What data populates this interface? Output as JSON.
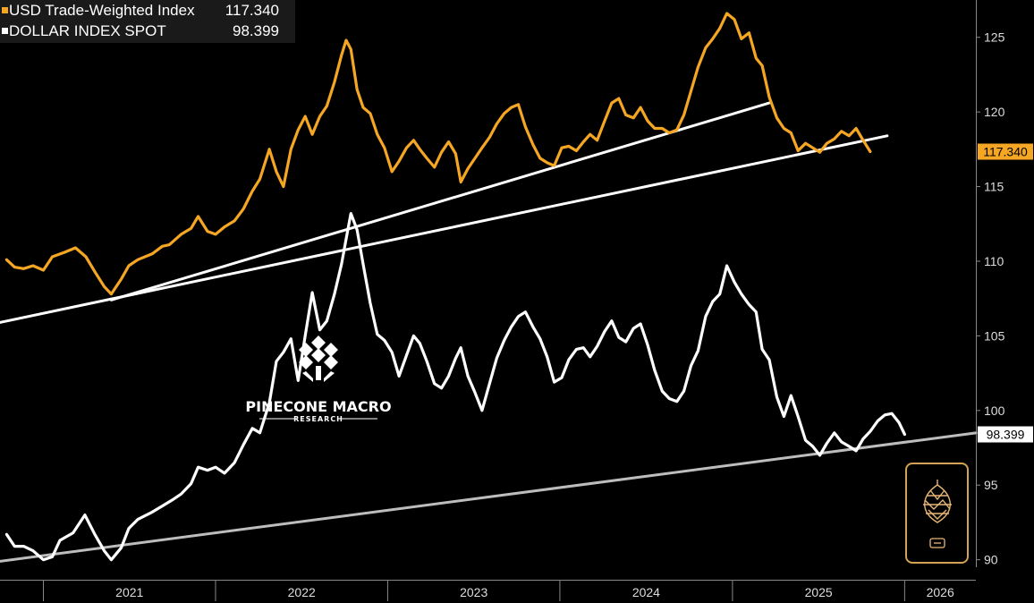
{
  "legend": {
    "series1": {
      "name": "USD Trade-Weighted Index",
      "value": "117.340"
    },
    "series2": {
      "name": "DOLLAR INDEX SPOT",
      "value": "98.399"
    }
  },
  "watermark": {
    "line1": "PINECONE MACRO",
    "line2": "RESEARCH",
    "logo": "pinecone-logo-icon"
  },
  "colors": {
    "background": "#000000",
    "trade_weighted": "#f5a623",
    "dxy": "#ffffff",
    "trendline": "#ffffff",
    "support_line": "#bdbdbd"
  },
  "chart_data": {
    "type": "line",
    "x_axis": {
      "labels": [
        "2021",
        "2022",
        "2023",
        "2024",
        "2025",
        "2026"
      ],
      "range": [
        "2020-10",
        "2026-06"
      ]
    },
    "y_axis": {
      "position": "right",
      "ticks": [
        90,
        95,
        100,
        105,
        110,
        115,
        120,
        125
      ],
      "range": [
        89.5,
        127.5
      ]
    },
    "series": [
      {
        "name": "USD Trade-Weighted Index",
        "color": "#f5a623",
        "last_value": 117.34,
        "points": [
          [
            "2020-10-15",
            110.1
          ],
          [
            "2020-11-01",
            109.6
          ],
          [
            "2020-11-20",
            109.5
          ],
          [
            "2020-12-10",
            109.7
          ],
          [
            "2021-01-01",
            109.4
          ],
          [
            "2021-01-20",
            110.3
          ],
          [
            "2021-02-15",
            110.6
          ],
          [
            "2021-03-10",
            110.9
          ],
          [
            "2021-04-01",
            110.3
          ],
          [
            "2021-04-20",
            109.3
          ],
          [
            "2021-05-10",
            108.3
          ],
          [
            "2021-05-25",
            107.8
          ],
          [
            "2021-06-15",
            108.8
          ],
          [
            "2021-07-01",
            109.7
          ],
          [
            "2021-07-20",
            110.1
          ],
          [
            "2021-08-20",
            110.5
          ],
          [
            "2021-09-10",
            111.0
          ],
          [
            "2021-09-25",
            111.1
          ],
          [
            "2021-10-20",
            111.8
          ],
          [
            "2021-11-10",
            112.2
          ],
          [
            "2021-11-25",
            113.0
          ],
          [
            "2021-12-15",
            112.0
          ],
          [
            "2022-01-01",
            111.8
          ],
          [
            "2022-01-20",
            112.3
          ],
          [
            "2022-02-10",
            112.7
          ],
          [
            "2022-03-01",
            113.5
          ],
          [
            "2022-03-20",
            114.7
          ],
          [
            "2022-04-05",
            115.5
          ],
          [
            "2022-04-25",
            117.5
          ],
          [
            "2022-05-10",
            116.0
          ],
          [
            "2022-05-25",
            115.0
          ],
          [
            "2022-06-10",
            117.5
          ],
          [
            "2022-06-25",
            118.8
          ],
          [
            "2022-07-10",
            119.7
          ],
          [
            "2022-07-25",
            118.5
          ],
          [
            "2022-08-10",
            119.7
          ],
          [
            "2022-08-25",
            120.4
          ],
          [
            "2022-09-10",
            122.0
          ],
          [
            "2022-09-25",
            123.8
          ],
          [
            "2022-10-05",
            124.8
          ],
          [
            "2022-10-15",
            124.2
          ],
          [
            "2022-10-28",
            121.5
          ],
          [
            "2022-11-10",
            120.3
          ],
          [
            "2022-11-25",
            119.9
          ],
          [
            "2022-12-10",
            118.5
          ],
          [
            "2022-12-25",
            117.6
          ],
          [
            "2023-01-10",
            116.0
          ],
          [
            "2023-01-25",
            116.7
          ],
          [
            "2023-02-10",
            117.6
          ],
          [
            "2023-02-25",
            118.1
          ],
          [
            "2023-03-10",
            117.5
          ],
          [
            "2023-03-25",
            116.9
          ],
          [
            "2023-04-10",
            116.3
          ],
          [
            "2023-04-25",
            117.3
          ],
          [
            "2023-05-10",
            118.0
          ],
          [
            "2023-05-25",
            117.2
          ],
          [
            "2023-06-05",
            115.3
          ],
          [
            "2023-06-20",
            116.2
          ],
          [
            "2023-07-05",
            116.9
          ],
          [
            "2023-07-20",
            117.6
          ],
          [
            "2023-08-05",
            118.3
          ],
          [
            "2023-08-20",
            119.2
          ],
          [
            "2023-09-05",
            119.9
          ],
          [
            "2023-09-20",
            120.3
          ],
          [
            "2023-10-05",
            120.5
          ],
          [
            "2023-10-20",
            119.0
          ],
          [
            "2023-11-05",
            117.8
          ],
          [
            "2023-11-20",
            116.9
          ],
          [
            "2023-12-05",
            116.6
          ],
          [
            "2023-12-20",
            116.4
          ],
          [
            "2024-01-05",
            117.6
          ],
          [
            "2024-01-20",
            117.7
          ],
          [
            "2024-02-05",
            117.4
          ],
          [
            "2024-02-20",
            118.0
          ],
          [
            "2024-03-05",
            118.5
          ],
          [
            "2024-03-20",
            118.1
          ],
          [
            "2024-04-05",
            119.4
          ],
          [
            "2024-04-20",
            120.6
          ],
          [
            "2024-05-05",
            120.9
          ],
          [
            "2024-05-20",
            119.8
          ],
          [
            "2024-06-05",
            119.6
          ],
          [
            "2024-06-20",
            120.3
          ],
          [
            "2024-07-05",
            119.4
          ],
          [
            "2024-07-20",
            118.9
          ],
          [
            "2024-08-05",
            118.9
          ],
          [
            "2024-08-20",
            118.6
          ],
          [
            "2024-09-05",
            118.8
          ],
          [
            "2024-09-20",
            119.8
          ],
          [
            "2024-10-05",
            121.4
          ],
          [
            "2024-10-20",
            123.0
          ],
          [
            "2024-11-05",
            124.3
          ],
          [
            "2024-11-20",
            124.9
          ],
          [
            "2024-12-05",
            125.6
          ],
          [
            "2024-12-20",
            126.6
          ],
          [
            "2025-01-05",
            126.2
          ],
          [
            "2025-01-20",
            124.9
          ],
          [
            "2025-02-05",
            125.3
          ],
          [
            "2025-02-20",
            123.6
          ],
          [
            "2025-03-05",
            123.1
          ],
          [
            "2025-03-20",
            121.0
          ],
          [
            "2025-04-05",
            119.6
          ],
          [
            "2025-04-20",
            118.9
          ],
          [
            "2025-05-05",
            118.6
          ],
          [
            "2025-05-20",
            117.4
          ],
          [
            "2025-06-05",
            117.9
          ],
          [
            "2025-06-20",
            117.6
          ],
          [
            "2025-07-05",
            117.3
          ],
          [
            "2025-07-20",
            117.9
          ],
          [
            "2025-08-05",
            118.2
          ],
          [
            "2025-08-20",
            118.7
          ],
          [
            "2025-09-05",
            118.4
          ],
          [
            "2025-09-20",
            118.9
          ],
          [
            "2025-10-05",
            118.1
          ],
          [
            "2025-10-20",
            117.34
          ]
        ]
      },
      {
        "name": "DOLLAR INDEX SPOT",
        "color": "#ffffff",
        "last_value": 98.399,
        "points": [
          [
            "2020-10-15",
            91.7
          ],
          [
            "2020-11-01",
            90.9
          ],
          [
            "2020-11-20",
            90.9
          ],
          [
            "2020-12-10",
            90.6
          ],
          [
            "2021-01-01",
            90.0
          ],
          [
            "2021-01-20",
            90.2
          ],
          [
            "2021-02-05",
            91.3
          ],
          [
            "2021-03-05",
            91.8
          ],
          [
            "2021-03-30",
            93.0
          ],
          [
            "2021-04-20",
            91.7
          ],
          [
            "2021-05-10",
            90.6
          ],
          [
            "2021-05-25",
            90.0
          ],
          [
            "2021-06-15",
            90.8
          ],
          [
            "2021-07-01",
            92.1
          ],
          [
            "2021-07-20",
            92.7
          ],
          [
            "2021-08-20",
            93.2
          ],
          [
            "2021-09-10",
            93.6
          ],
          [
            "2021-10-01",
            94.0
          ],
          [
            "2021-10-20",
            94.4
          ],
          [
            "2021-11-10",
            95.1
          ],
          [
            "2021-11-25",
            96.2
          ],
          [
            "2021-12-15",
            96.0
          ],
          [
            "2022-01-01",
            96.2
          ],
          [
            "2022-01-20",
            95.8
          ],
          [
            "2022-02-10",
            96.5
          ],
          [
            "2022-03-01",
            97.7
          ],
          [
            "2022-03-20",
            98.8
          ],
          [
            "2022-04-05",
            98.5
          ],
          [
            "2022-04-25",
            100.5
          ],
          [
            "2022-05-10",
            103.3
          ],
          [
            "2022-05-25",
            103.9
          ],
          [
            "2022-06-10",
            104.8
          ],
          [
            "2022-06-25",
            102.0
          ],
          [
            "2022-07-10",
            105.0
          ],
          [
            "2022-07-25",
            107.9
          ],
          [
            "2022-08-10",
            105.4
          ],
          [
            "2022-08-25",
            106.0
          ],
          [
            "2022-09-10",
            107.8
          ],
          [
            "2022-09-25",
            109.8
          ],
          [
            "2022-10-05",
            111.5
          ],
          [
            "2022-10-15",
            113.2
          ],
          [
            "2022-10-28",
            112.1
          ],
          [
            "2022-11-10",
            109.8
          ],
          [
            "2022-11-25",
            107.2
          ],
          [
            "2022-12-10",
            105.1
          ],
          [
            "2022-12-25",
            104.7
          ],
          [
            "2023-01-10",
            103.9
          ],
          [
            "2023-01-25",
            102.3
          ],
          [
            "2023-02-10",
            103.7
          ],
          [
            "2023-02-25",
            105.0
          ],
          [
            "2023-03-10",
            104.5
          ],
          [
            "2023-03-25",
            103.3
          ],
          [
            "2023-04-10",
            101.8
          ],
          [
            "2023-04-25",
            101.5
          ],
          [
            "2023-05-10",
            102.3
          ],
          [
            "2023-05-25",
            103.5
          ],
          [
            "2023-06-05",
            104.2
          ],
          [
            "2023-06-20",
            102.3
          ],
          [
            "2023-07-05",
            101.2
          ],
          [
            "2023-07-20",
            100.0
          ],
          [
            "2023-08-05",
            101.8
          ],
          [
            "2023-08-20",
            103.5
          ],
          [
            "2023-09-05",
            104.7
          ],
          [
            "2023-09-20",
            105.6
          ],
          [
            "2023-10-05",
            106.3
          ],
          [
            "2023-10-20",
            106.6
          ],
          [
            "2023-11-05",
            105.6
          ],
          [
            "2023-11-20",
            104.8
          ],
          [
            "2023-12-05",
            103.6
          ],
          [
            "2023-12-20",
            101.9
          ],
          [
            "2024-01-05",
            102.2
          ],
          [
            "2024-01-20",
            103.4
          ],
          [
            "2024-02-05",
            104.1
          ],
          [
            "2024-02-20",
            104.2
          ],
          [
            "2024-03-05",
            103.6
          ],
          [
            "2024-03-20",
            104.3
          ],
          [
            "2024-04-05",
            105.3
          ],
          [
            "2024-04-20",
            106.0
          ],
          [
            "2024-05-05",
            104.9
          ],
          [
            "2024-05-20",
            104.6
          ],
          [
            "2024-06-05",
            105.5
          ],
          [
            "2024-06-20",
            105.8
          ],
          [
            "2024-07-05",
            104.4
          ],
          [
            "2024-07-20",
            102.7
          ],
          [
            "2024-08-05",
            101.3
          ],
          [
            "2024-08-20",
            100.8
          ],
          [
            "2024-09-05",
            100.6
          ],
          [
            "2024-09-20",
            101.3
          ],
          [
            "2024-10-05",
            103.0
          ],
          [
            "2024-10-20",
            104.0
          ],
          [
            "2024-11-05",
            106.3
          ],
          [
            "2024-11-20",
            107.3
          ],
          [
            "2024-12-05",
            107.8
          ],
          [
            "2024-12-20",
            109.7
          ],
          [
            "2025-01-05",
            108.6
          ],
          [
            "2025-01-20",
            107.8
          ],
          [
            "2025-02-05",
            107.1
          ],
          [
            "2025-02-20",
            106.6
          ],
          [
            "2025-03-05",
            104.1
          ],
          [
            "2025-03-20",
            103.4
          ],
          [
            "2025-04-05",
            100.9
          ],
          [
            "2025-04-20",
            99.6
          ],
          [
            "2025-05-05",
            101.0
          ],
          [
            "2025-05-20",
            99.6
          ],
          [
            "2025-06-05",
            98.0
          ],
          [
            "2025-06-20",
            97.6
          ],
          [
            "2025-07-05",
            97.0
          ],
          [
            "2025-07-20",
            97.8
          ],
          [
            "2025-08-05",
            98.5
          ],
          [
            "2025-08-20",
            97.9
          ],
          [
            "2025-09-05",
            97.6
          ],
          [
            "2025-09-20",
            97.3
          ],
          [
            "2025-10-05",
            98.1
          ],
          [
            "2025-10-20",
            98.6
          ],
          [
            "2025-11-05",
            99.3
          ],
          [
            "2025-11-20",
            99.7
          ],
          [
            "2025-12-05",
            99.8
          ],
          [
            "2025-12-20",
            99.2
          ],
          [
            "2026-01-01",
            98.399
          ]
        ]
      }
    ],
    "trendlines": [
      {
        "name": "upper-trendline",
        "color": "#ffffff",
        "from": [
          "2021-05-25",
          107.4
        ],
        "to": [
          "2025-03-20",
          120.6
        ]
      },
      {
        "name": "middle-trendline",
        "color": "#ffffff",
        "from": [
          "2020-10-01",
          105.9
        ],
        "to": [
          "2025-11-25",
          118.4
        ]
      },
      {
        "name": "support-trendline",
        "color": "#bdbdbd",
        "from": [
          "2020-10-01",
          89.9
        ],
        "to": [
          "2026-06-01",
          98.5
        ]
      }
    ],
    "value_tags": [
      {
        "series": "USD Trade-Weighted Index",
        "text": "117.340",
        "value": 117.34,
        "bg": "#f5a623"
      },
      {
        "series": "DOLLAR INDEX SPOT",
        "text": "98.399",
        "value": 98.399,
        "bg": "#ffffff"
      }
    ]
  }
}
